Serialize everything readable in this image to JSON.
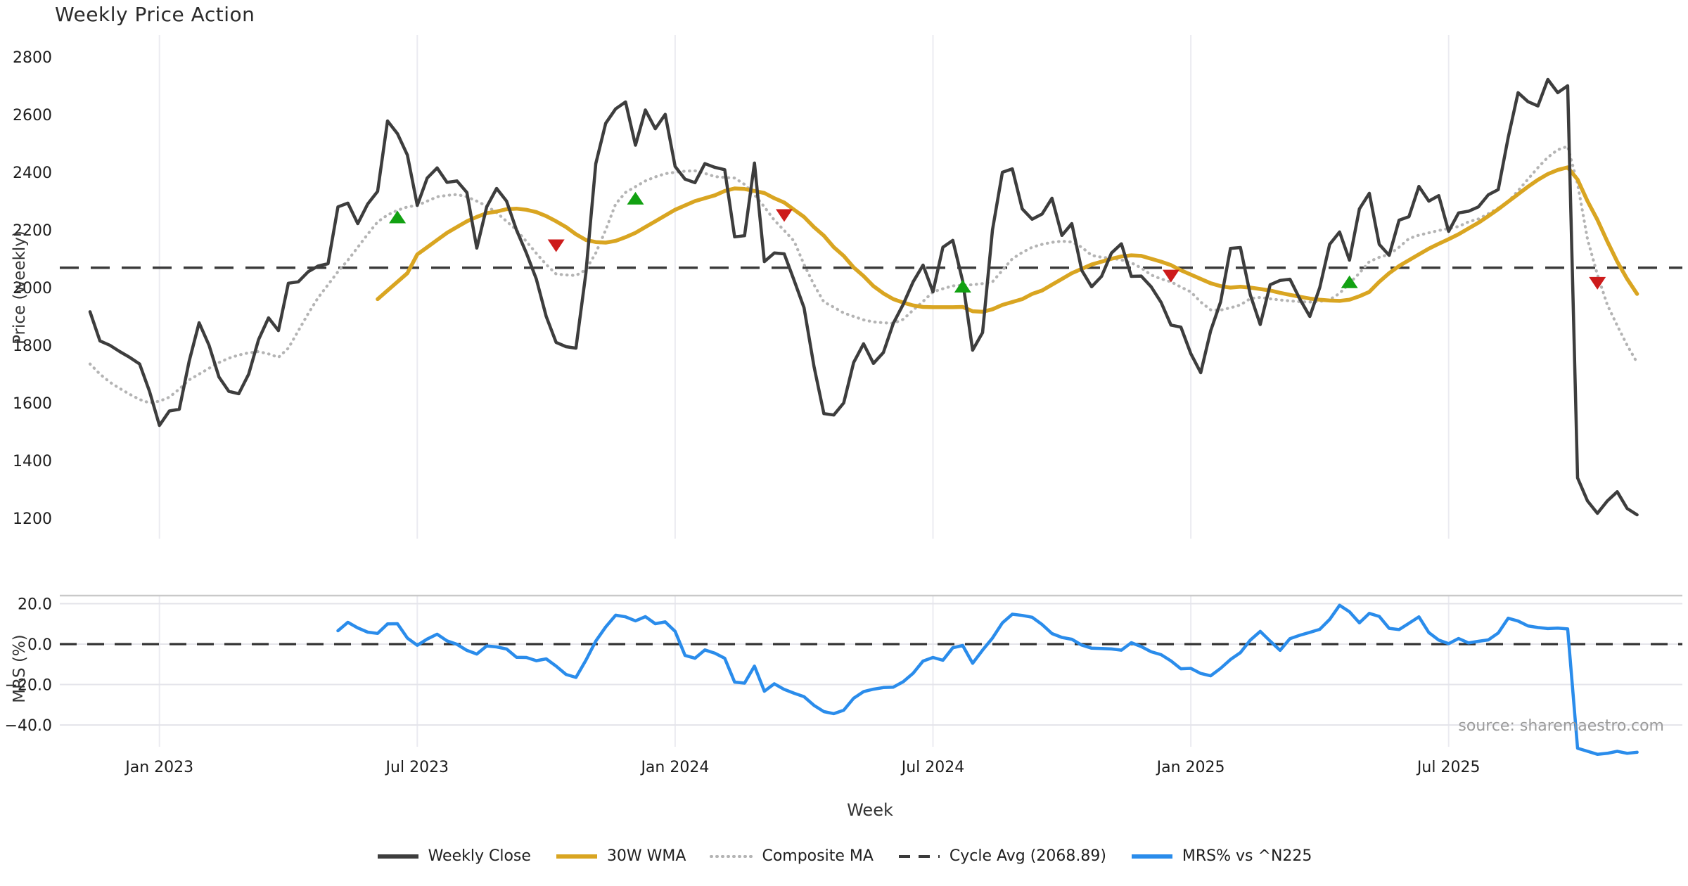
{
  "title": "Weekly Price Action",
  "source_note": "source: sharemaestro.com",
  "colors": {
    "weekly_close": "#3d3d3d",
    "wma": "#d9a521",
    "composite": "#b4b4b4",
    "cycle_avg": "#3a3a3a",
    "mrs": "#2a8ceb",
    "buy_marker": "#12a112",
    "sell_marker": "#cd1b1b",
    "grid": "#ebebf1",
    "panel_border": "#c9c9c9",
    "zero_line": "#333333"
  },
  "legend": [
    {
      "label": "Weekly Close",
      "color": "#3d3d3d",
      "style": "solid"
    },
    {
      "label": "30W WMA",
      "color": "#d9a521",
      "style": "solid"
    },
    {
      "label": "Composite MA",
      "color": "#b4b4b4",
      "style": "dotted"
    },
    {
      "label": "Cycle Avg (2068.89)",
      "color": "#3a3a3a",
      "style": "dashed"
    },
    {
      "label": "MRS% vs ^N225",
      "color": "#2a8ceb",
      "style": "solid"
    }
  ],
  "chart_data": [
    {
      "type": "line",
      "panel": "price",
      "title": "Weekly Price Action",
      "xlabel": "Week",
      "ylabel": "Price (weekly)",
      "ylim": [
        1130,
        2876
      ],
      "y_ticks": [
        {
          "label": "2800",
          "value": 2800
        },
        {
          "label": "2600",
          "value": 2600
        },
        {
          "label": "2400",
          "value": 2400
        },
        {
          "label": "2200",
          "value": 2200
        },
        {
          "label": "2000",
          "value": 2000
        },
        {
          "label": "1800",
          "value": 1800
        },
        {
          "label": "1600",
          "value": 1600
        },
        {
          "label": "1400",
          "value": 1400
        },
        {
          "label": "1200",
          "value": 1200
        }
      ],
      "x_ticks": [
        {
          "label": "Jan 2023",
          "week": 7
        },
        {
          "label": "Jul 2023",
          "week": 33
        },
        {
          "label": "Jan 2024",
          "week": 59
        },
        {
          "label": "Jul 2024",
          "week": 85
        },
        {
          "label": "Jan 2025",
          "week": 111
        },
        {
          "label": "Jul 2025",
          "week": 137
        }
      ],
      "cycle_avg": 2068.89,
      "series": [
        {
          "name": "Weekly Close",
          "style": "solid",
          "color_key": "weekly_close",
          "start_week": 0,
          "values": [
            1916,
            1815,
            1800,
            1778,
            1758,
            1735,
            1640,
            1522,
            1572,
            1578,
            1745,
            1878,
            1800,
            1690,
            1640,
            1632,
            1700,
            1820,
            1895,
            1851,
            2015,
            2020,
            2055,
            2075,
            2083,
            2280,
            2293,
            2222,
            2290,
            2334,
            2578,
            2534,
            2460,
            2285,
            2380,
            2415,
            2365,
            2370,
            2330,
            2137,
            2280,
            2344,
            2300,
            2200,
            2120,
            2030,
            1900,
            1810,
            1795,
            1790,
            2050,
            2430,
            2570,
            2620,
            2644,
            2494,
            2616,
            2551,
            2601,
            2420,
            2376,
            2364,
            2430,
            2417,
            2409,
            2176,
            2180,
            2432,
            2090,
            2120,
            2117,
            2025,
            1930,
            1727,
            1563,
            1558,
            1600,
            1740,
            1805,
            1737,
            1775,
            1876,
            1942,
            2020,
            2078,
            1985,
            2140,
            2164,
            2022,
            1783,
            1844,
            2200,
            2400,
            2412,
            2273,
            2237,
            2255,
            2310,
            2181,
            2222,
            2060,
            2003,
            2039,
            2120,
            2152,
            2039,
            2040,
            2003,
            1949,
            1870,
            1863,
            1771,
            1705,
            1850,
            1950,
            2136,
            2139,
            1975,
            1872,
            2010,
            2025,
            2029,
            1960,
            1900,
            2000,
            2150,
            2193,
            2095,
            2273,
            2327,
            2150,
            2112,
            2234,
            2246,
            2351,
            2300,
            2319,
            2195,
            2259,
            2265,
            2280,
            2322,
            2340,
            2520,
            2676,
            2645,
            2630,
            2722,
            2676,
            2700,
            1340,
            1260,
            1217,
            1260,
            1292,
            1234,
            1212
          ]
        },
        {
          "name": "30W WMA",
          "style": "solid",
          "color_key": "wma",
          "start_week": 29,
          "values": [
            1960,
            1990,
            2020,
            2050,
            2115,
            2140,
            2165,
            2190,
            2210,
            2230,
            2245,
            2258,
            2264,
            2272,
            2274,
            2270,
            2262,
            2248,
            2230,
            2210,
            2185,
            2165,
            2158,
            2156,
            2162,
            2175,
            2190,
            2210,
            2230,
            2250,
            2270,
            2285,
            2300,
            2310,
            2320,
            2335,
            2344,
            2342,
            2335,
            2328,
            2310,
            2295,
            2270,
            2245,
            2210,
            2180,
            2140,
            2110,
            2070,
            2040,
            2005,
            1980,
            1960,
            1948,
            1938,
            1933,
            1932,
            1932,
            1932,
            1933,
            1918,
            1916,
            1925,
            1940,
            1950,
            1960,
            1978,
            1990,
            2010,
            2030,
            2050,
            2065,
            2080,
            2090,
            2100,
            2108,
            2112,
            2110,
            2100,
            2090,
            2078,
            2060,
            2045,
            2030,
            2015,
            2005,
            2000,
            2003,
            2000,
            1995,
            1990,
            1982,
            1975,
            1968,
            1962,
            1958,
            1955,
            1954,
            1958,
            1970,
            1985,
            2020,
            2050,
            2075,
            2095,
            2115,
            2135,
            2152,
            2168,
            2185,
            2205,
            2225,
            2248,
            2272,
            2298,
            2324,
            2350,
            2374,
            2394,
            2408,
            2417,
            2375,
            2300,
            2235,
            2160,
            2090,
            2030,
            1978
          ]
        },
        {
          "name": "Composite MA",
          "style": "dotted",
          "color_key": "composite",
          "start_week": 0,
          "values": [
            1735,
            1700,
            1672,
            1650,
            1630,
            1612,
            1600,
            1606,
            1620,
            1648,
            1680,
            1700,
            1720,
            1740,
            1755,
            1766,
            1774,
            1778,
            1770,
            1758,
            1790,
            1850,
            1910,
            1965,
            2010,
            2055,
            2095,
            2140,
            2185,
            2228,
            2252,
            2268,
            2280,
            2285,
            2300,
            2315,
            2320,
            2323,
            2315,
            2300,
            2283,
            2260,
            2230,
            2200,
            2160,
            2119,
            2080,
            2047,
            2044,
            2042,
            2062,
            2120,
            2200,
            2290,
            2330,
            2350,
            2370,
            2384,
            2395,
            2400,
            2404,
            2405,
            2396,
            2385,
            2382,
            2380,
            2358,
            2322,
            2280,
            2234,
            2198,
            2161,
            2080,
            2010,
            1950,
            1932,
            1912,
            1900,
            1888,
            1881,
            1878,
            1876,
            1890,
            1922,
            1952,
            1985,
            1996,
            2006,
            2008,
            2010,
            2014,
            2020,
            2060,
            2100,
            2122,
            2140,
            2150,
            2157,
            2161,
            2158,
            2140,
            2112,
            2105,
            2102,
            2096,
            2086,
            2068,
            2044,
            2030,
            2020,
            2002,
            1985,
            1950,
            1923,
            1922,
            1930,
            1940,
            1962,
            1966,
            1961,
            1957,
            1954,
            1951,
            1950,
            1952,
            1958,
            1980,
            2015,
            2050,
            2090,
            2105,
            2115,
            2140,
            2170,
            2182,
            2190,
            2198,
            2205,
            2212,
            2228,
            2238,
            2256,
            2276,
            2298,
            2336,
            2376,
            2416,
            2452,
            2478,
            2490,
            2360,
            2168,
            2045,
            1940,
            1868,
            1800,
            1740
          ]
        }
      ],
      "signals": {
        "buy": [
          {
            "week": 31,
            "price": 2245
          },
          {
            "week": 55,
            "price": 2310
          },
          {
            "week": 88,
            "price": 2005
          },
          {
            "week": 127,
            "price": 2020
          }
        ],
        "sell": [
          {
            "week": 47,
            "price": 2145
          },
          {
            "week": 70,
            "price": 2250
          },
          {
            "week": 109,
            "price": 2040
          },
          {
            "week": 152,
            "price": 2015
          }
        ]
      }
    },
    {
      "type": "line",
      "panel": "mrs",
      "ylabel": "MRS (%)",
      "ylim": [
        -57,
        24
      ],
      "zero_line": 0,
      "y_ticks": [
        {
          "label": "20.0",
          "value": 20
        },
        {
          "label": "0.0",
          "value": 0
        },
        {
          "label": "−20.0",
          "value": -20
        },
        {
          "label": "−40.0",
          "value": -40
        }
      ],
      "series": [
        {
          "name": "MRS% vs ^N225",
          "style": "solid",
          "color_key": "mrs",
          "start_week": 25,
          "values": [
            6.6,
            10.8,
            8.0,
            5.9,
            5.3,
            10.0,
            10.1,
            3.0,
            -0.6,
            2.5,
            4.9,
            1.6,
            -0.1,
            -3.1,
            -4.9,
            -0.9,
            -1.4,
            -2.4,
            -6.5,
            -6.6,
            -8.2,
            -7.3,
            -10.9,
            -15.0,
            -16.5,
            -8.0,
            1.5,
            8.5,
            14.3,
            13.5,
            11.5,
            13.6,
            10.1,
            11.0,
            6.3,
            -5.6,
            -7.0,
            -2.9,
            -4.5,
            -7.0,
            -18.8,
            -19.3,
            -10.9,
            -23.3,
            -19.6,
            -22.4,
            -24.3,
            -26.0,
            -30.3,
            -33.4,
            -34.4,
            -32.7,
            -26.8,
            -23.5,
            -22.3,
            -21.5,
            -21.3,
            -18.6,
            -14.4,
            -8.4,
            -6.6,
            -8.0,
            -1.8,
            -0.7,
            -9.5,
            -3.0,
            3.0,
            10.5,
            14.8,
            14.2,
            13.3,
            9.7,
            5.2,
            3.3,
            2.4,
            -0.5,
            -2.0,
            -2.2,
            -2.4,
            -3.0,
            0.7,
            -1.2,
            -3.8,
            -5.2,
            -8.3,
            -12.2,
            -12.0,
            -14.5,
            -15.7,
            -12.0,
            -7.6,
            -4.2,
            2.0,
            6.3,
            1.5,
            -3.1,
            2.7,
            4.4,
            5.8,
            7.3,
            12.2,
            19.2,
            16.0,
            10.5,
            15.2,
            13.7,
            7.8,
            7.2,
            10.3,
            13.5,
            5.7,
            2.0,
            0.2,
            2.8,
            0.6,
            1.4,
            2.1,
            5.5,
            12.8,
            11.4,
            9.0,
            8.2,
            7.7,
            7.9,
            7.5,
            -51.5,
            -53.0,
            -54.5,
            -54.0,
            -53.0,
            -54.0,
            -53.5
          ]
        }
      ]
    }
  ]
}
